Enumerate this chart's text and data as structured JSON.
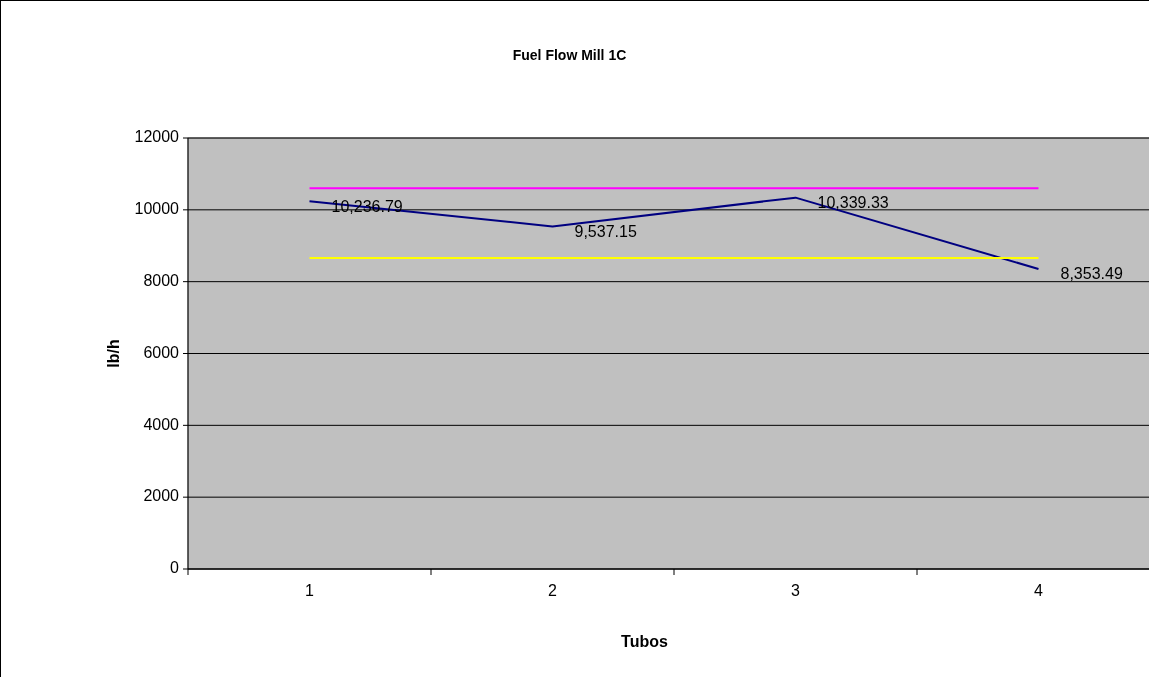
{
  "chart_data": {
    "type": "line",
    "title": "Fuel Flow Mill 1C",
    "xlabel": "Tubos",
    "ylabel": "lb/h",
    "categories": [
      "1",
      "2",
      "3",
      "4"
    ],
    "series": [
      {
        "color": "#000080",
        "values": [
          10236.79,
          9537.15,
          10339.33,
          8353.49
        ],
        "value_labels": [
          "10,236.79",
          "9,537.15",
          "10,339.33",
          "8,353.49"
        ]
      },
      {
        "color": "#ff00ff",
        "values": [
          10600,
          10600,
          10600,
          10600
        ]
      },
      {
        "color": "#ffff00",
        "values": [
          8660,
          8660,
          8660,
          8660
        ]
      }
    ],
    "ylim": [
      0,
      12000
    ],
    "yticks": [
      0,
      2000,
      4000,
      6000,
      8000,
      10000,
      12000
    ],
    "grid": "y",
    "marker": "none",
    "line_style": "solid"
  }
}
